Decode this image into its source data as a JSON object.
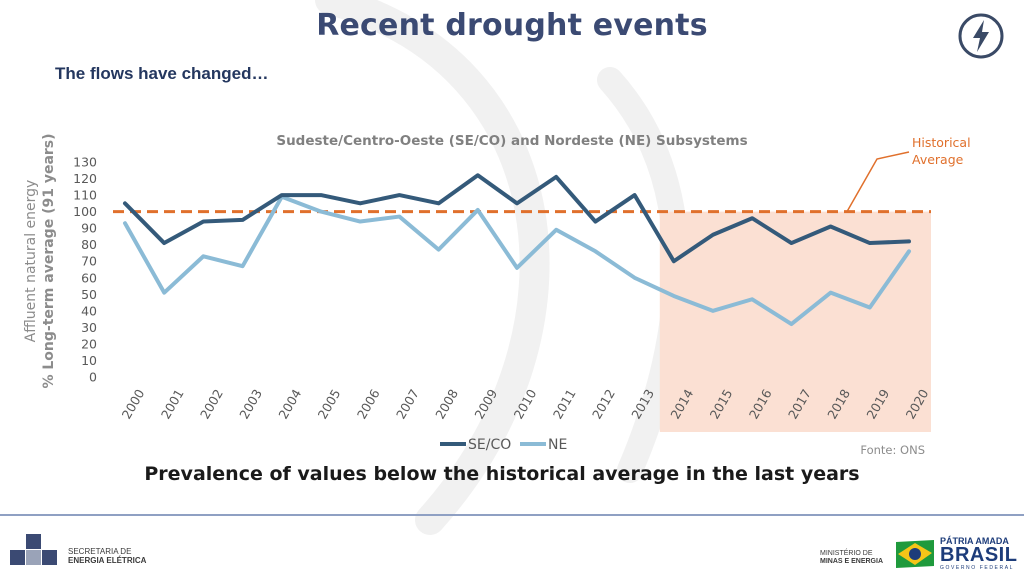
{
  "header": {
    "title": "Recent drought events",
    "subtitle": "The flows have changed…",
    "icon": "lightning-bolt-icon"
  },
  "chart_data": {
    "type": "line",
    "title": "Sudeste/Centro-Oeste (SE/CO) and Nordeste (NE) Subsystems",
    "ylabel_line1": "Affluent natural energy",
    "ylabel_line2": "% Long-term average (91 years)",
    "xlabel": "",
    "ylim": [
      0,
      130
    ],
    "ytick_step": 10,
    "yticks": [
      "130",
      "120",
      "110",
      "100",
      "90",
      "80",
      "70",
      "60",
      "50",
      "40",
      "30",
      "20",
      "10",
      "0"
    ],
    "categories": [
      "2000",
      "2001",
      "2002",
      "2003",
      "2004",
      "2005",
      "2006",
      "2007",
      "2008",
      "2009",
      "2010",
      "2011",
      "2012",
      "2013",
      "2014",
      "2015",
      "2016",
      "2017",
      "2018",
      "2019",
      "2020"
    ],
    "series": [
      {
        "name": "SE/CO",
        "color": "#345a7a",
        "values": [
          105,
          81,
          94,
          95,
          110,
          110,
          105,
          110,
          105,
          122,
          105,
          121,
          94,
          110,
          70,
          86,
          96,
          81,
          91,
          81,
          82
        ]
      },
      {
        "name": "NE",
        "color": "#8bbbd6",
        "values": [
          93,
          51,
          73,
          67,
          109,
          100,
          94,
          97,
          77,
          101,
          66,
          89,
          76,
          60,
          49,
          40,
          47,
          32,
          51,
          42,
          76
        ]
      }
    ],
    "reference_line": {
      "value": 100,
      "label_line1": "Historical",
      "label_line2": "Average",
      "color": "#e0702c"
    },
    "highlight": {
      "from": "2014",
      "to": "2020",
      "color": "#fbe0d3"
    },
    "source": "Fonte: ONS"
  },
  "takeaway": "Prevalence of values below the historical average in the last years",
  "footer": {
    "secretaria_line1": "SECRETARIA DE",
    "secretaria_line2": "ENERGIA ELÉTRICA",
    "ministerio_line1": "MINISTÉRIO DE",
    "ministerio_line2": "MINAS E ENERGIA",
    "patria": "PÁTRIA AMADA",
    "brasil": "BRASIL",
    "governo": "GOVERNO FEDERAL"
  }
}
